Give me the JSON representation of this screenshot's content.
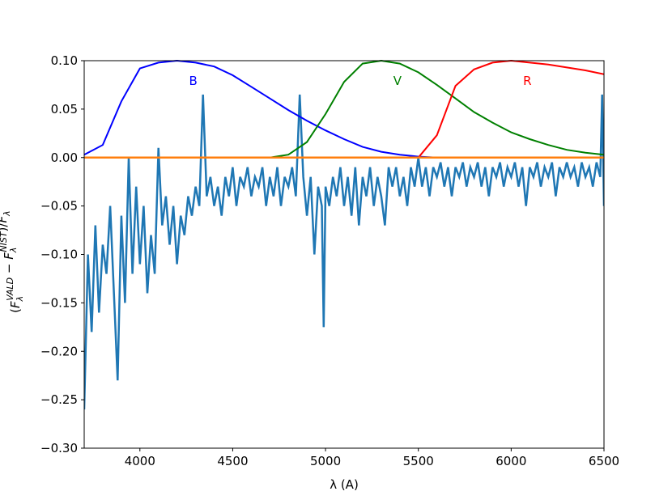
{
  "chart_data": {
    "type": "line",
    "xlabel": "λ (A)",
    "ylabel": "(F_λ^VALD − F_λ^NIST)/F_λ^NIST",
    "xlim": [
      3700,
      6500
    ],
    "ylim": [
      -0.3,
      0.1
    ],
    "xticks": [
      4000,
      4500,
      5000,
      5500,
      6000,
      6500
    ],
    "yticks": [
      {
        "value": -0.3,
        "label": "−0.30"
      },
      {
        "value": -0.25,
        "label": "−0.25"
      },
      {
        "value": -0.2,
        "label": "−0.20"
      },
      {
        "value": -0.15,
        "label": "−0.15"
      },
      {
        "value": -0.1,
        "label": "−0.10"
      },
      {
        "value": -0.05,
        "label": "−0.05"
      },
      {
        "value": 0,
        "label": "0.00"
      },
      {
        "value": 0.05,
        "label": "0.05"
      },
      {
        "value": 0.1,
        "label": "0.10"
      }
    ],
    "series": [
      {
        "name": "B",
        "color": "#0000ff",
        "x": [
          3700,
          3800,
          3900,
          4000,
          4100,
          4200,
          4300,
          4400,
          4500,
          4600,
          4700,
          4800,
          4900,
          5000,
          5100,
          5200,
          5300,
          5400,
          5500,
          5600
        ],
        "values": [
          0.003,
          0.013,
          0.058,
          0.092,
          0.098,
          0.1,
          0.098,
          0.094,
          0.085,
          0.073,
          0.061,
          0.049,
          0.038,
          0.028,
          0.019,
          0.011,
          0.006,
          0.003,
          0.001,
          0
        ]
      },
      {
        "name": "V",
        "color": "#008000",
        "x": [
          4700,
          4800,
          4900,
          5000,
          5100,
          5200,
          5300,
          5400,
          5500,
          5600,
          5700,
          5800,
          5900,
          6000,
          6100,
          6200,
          6300,
          6400,
          6500
        ],
        "values": [
          0,
          0.003,
          0.016,
          0.045,
          0.078,
          0.097,
          0.1,
          0.097,
          0.088,
          0.075,
          0.061,
          0.047,
          0.036,
          0.026,
          0.019,
          0.013,
          0.008,
          0.005,
          0.003
        ]
      },
      {
        "name": "R",
        "color": "#ff0000",
        "x": [
          5500,
          5600,
          5700,
          5800,
          5900,
          6000,
          6100,
          6200,
          6300,
          6400,
          6500
        ],
        "values": [
          0,
          0.023,
          0.074,
          0.091,
          0.098,
          0.1,
          0.098,
          0.096,
          0.093,
          0.09,
          0.086
        ]
      },
      {
        "color": "#1f77b4",
        "x": [
          3700,
          3720,
          3740,
          3760,
          3780,
          3800,
          3820,
          3840,
          3860,
          3880,
          3900,
          3920,
          3940,
          3960,
          3980,
          4000,
          4020,
          4040,
          4060,
          4080,
          4100,
          4120,
          4140,
          4160,
          4180,
          4200,
          4220,
          4240,
          4260,
          4280,
          4300,
          4320,
          4340,
          4360,
          4380,
          4400,
          4420,
          4440,
          4460,
          4480,
          4500,
          4520,
          4540,
          4560,
          4580,
          4600,
          4620,
          4640,
          4660,
          4680,
          4700,
          4720,
          4740,
          4760,
          4780,
          4800,
          4820,
          4840,
          4861,
          4880,
          4900,
          4920,
          4940,
          4960,
          4980,
          4990,
          5000,
          5020,
          5040,
          5060,
          5080,
          5100,
          5120,
          5140,
          5160,
          5180,
          5200,
          5220,
          5240,
          5260,
          5280,
          5300,
          5320,
          5340,
          5360,
          5380,
          5400,
          5420,
          5440,
          5460,
          5480,
          5500,
          5520,
          5540,
          5560,
          5580,
          5600,
          5620,
          5640,
          5660,
          5680,
          5700,
          5720,
          5740,
          5760,
          5780,
          5800,
          5820,
          5840,
          5860,
          5880,
          5900,
          5920,
          5940,
          5960,
          5980,
          6000,
          6020,
          6040,
          6060,
          6080,
          6100,
          6120,
          6140,
          6160,
          6180,
          6200,
          6220,
          6240,
          6260,
          6280,
          6300,
          6320,
          6340,
          6360,
          6380,
          6400,
          6420,
          6440,
          6460,
          6480,
          6490,
          6500
        ],
        "values": [
          -0.26,
          -0.1,
          -0.18,
          -0.07,
          -0.16,
          -0.09,
          -0.12,
          -0.05,
          -0.14,
          -0.23,
          -0.06,
          -0.15,
          0.0,
          -0.12,
          -0.03,
          -0.11,
          -0.05,
          -0.14,
          -0.08,
          -0.12,
          0.01,
          -0.07,
          -0.04,
          -0.09,
          -0.05,
          -0.11,
          -0.06,
          -0.08,
          -0.04,
          -0.06,
          -0.03,
          -0.05,
          0.065,
          -0.04,
          -0.02,
          -0.05,
          -0.03,
          -0.06,
          -0.02,
          -0.04,
          -0.01,
          -0.05,
          -0.02,
          -0.03,
          -0.01,
          -0.04,
          -0.02,
          -0.03,
          -0.01,
          -0.05,
          -0.02,
          -0.04,
          -0.01,
          -0.05,
          -0.02,
          -0.03,
          -0.01,
          -0.04,
          0.065,
          -0.02,
          -0.06,
          -0.02,
          -0.1,
          -0.03,
          -0.05,
          -0.175,
          -0.03,
          -0.05,
          -0.02,
          -0.04,
          -0.01,
          -0.05,
          -0.02,
          -0.06,
          -0.01,
          -0.07,
          -0.02,
          -0.04,
          -0.01,
          -0.05,
          -0.02,
          -0.04,
          -0.07,
          -0.01,
          -0.03,
          -0.01,
          -0.04,
          -0.02,
          -0.05,
          -0.01,
          -0.03,
          0.0,
          -0.03,
          -0.01,
          -0.04,
          -0.01,
          -0.02,
          -0.005,
          -0.03,
          -0.01,
          -0.04,
          -0.01,
          -0.02,
          -0.005,
          -0.03,
          -0.01,
          -0.02,
          -0.005,
          -0.03,
          -0.01,
          -0.04,
          -0.01,
          -0.02,
          -0.005,
          -0.03,
          -0.01,
          -0.02,
          -0.005,
          -0.03,
          -0.01,
          -0.05,
          -0.01,
          -0.02,
          -0.005,
          -0.03,
          -0.01,
          -0.02,
          -0.005,
          -0.04,
          -0.01,
          -0.02,
          -0.005,
          -0.02,
          -0.01,
          -0.03,
          -0.005,
          -0.02,
          -0.01,
          -0.03,
          -0.005,
          -0.02,
          0.065,
          -0.05
        ]
      },
      {
        "color": "#ff7f0e",
        "x": [
          3700,
          6500
        ],
        "values": [
          0,
          0
        ]
      }
    ]
  }
}
